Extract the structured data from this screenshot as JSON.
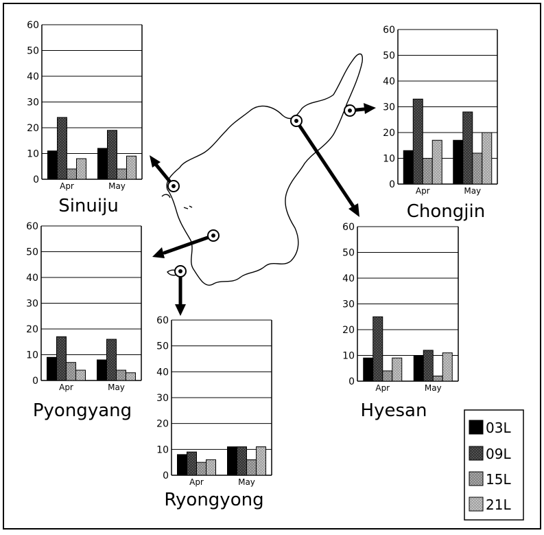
{
  "chart_data": [
    {
      "type": "bar",
      "title": "Sinuiju",
      "categories": [
        "Apr",
        "May"
      ],
      "ylim": [
        0,
        60
      ],
      "yticks": [
        0,
        10,
        20,
        30,
        40,
        50,
        60
      ],
      "series": [
        {
          "name": "03 L",
          "values": [
            11,
            12
          ]
        },
        {
          "name": "09 L",
          "values": [
            24,
            19
          ]
        },
        {
          "name": "15 L",
          "values": [
            4,
            4
          ]
        },
        {
          "name": "21 L",
          "values": [
            8,
            9
          ]
        }
      ]
    },
    {
      "type": "bar",
      "title": "Chongjin",
      "categories": [
        "Apr",
        "May"
      ],
      "ylim": [
        0,
        60
      ],
      "yticks": [
        0,
        10,
        20,
        30,
        40,
        50,
        60
      ],
      "series": [
        {
          "name": "03 L",
          "values": [
            13,
            17
          ]
        },
        {
          "name": "09 L",
          "values": [
            33,
            28
          ]
        },
        {
          "name": "15 L",
          "values": [
            10,
            12
          ]
        },
        {
          "name": "21 L",
          "values": [
            17,
            20
          ]
        }
      ]
    },
    {
      "type": "bar",
      "title": "Pyongyang",
      "categories": [
        "Apr",
        "May"
      ],
      "ylim": [
        0,
        60
      ],
      "yticks": [
        0,
        10,
        20,
        30,
        40,
        50,
        60
      ],
      "series": [
        {
          "name": "03 L",
          "values": [
            9,
            8
          ]
        },
        {
          "name": "09 L",
          "values": [
            17,
            16
          ]
        },
        {
          "name": "15 L",
          "values": [
            7,
            4
          ]
        },
        {
          "name": "21 L",
          "values": [
            4,
            3
          ]
        }
      ]
    },
    {
      "type": "bar",
      "title": "Hyesan",
      "categories": [
        "Apr",
        "May"
      ],
      "ylim": [
        0,
        60
      ],
      "yticks": [
        0,
        10,
        20,
        30,
        40,
        50,
        60
      ],
      "series": [
        {
          "name": "03 L",
          "values": [
            9,
            10
          ]
        },
        {
          "name": "09 L",
          "values": [
            25,
            12
          ]
        },
        {
          "name": "15 L",
          "values": [
            4,
            2
          ]
        },
        {
          "name": "21 L",
          "values": [
            9,
            11
          ]
        }
      ]
    },
    {
      "type": "bar",
      "title": "Ryongyong",
      "categories": [
        "Apr",
        "May"
      ],
      "ylim": [
        0,
        60
      ],
      "yticks": [
        0,
        10,
        20,
        30,
        40,
        50,
        60
      ],
      "series": [
        {
          "name": "03 L",
          "values": [
            8,
            11
          ]
        },
        {
          "name": "09 L",
          "values": [
            9,
            11
          ]
        },
        {
          "name": "15 L",
          "values": [
            5,
            6
          ]
        },
        {
          "name": "21 L",
          "values": [
            6,
            11
          ]
        }
      ]
    }
  ],
  "legend": {
    "items": [
      {
        "label": "03L",
        "color": "#000000"
      },
      {
        "label": "09L",
        "color": "#3a3a3a"
      },
      {
        "label": "15L",
        "color": "#8c8c8c"
      },
      {
        "label": "21L",
        "color": "#a8a8a8"
      }
    ]
  },
  "colors": {
    "series": [
      "#000000",
      "#3a3a3a",
      "#8c8c8c",
      "#a8a8a8"
    ]
  }
}
